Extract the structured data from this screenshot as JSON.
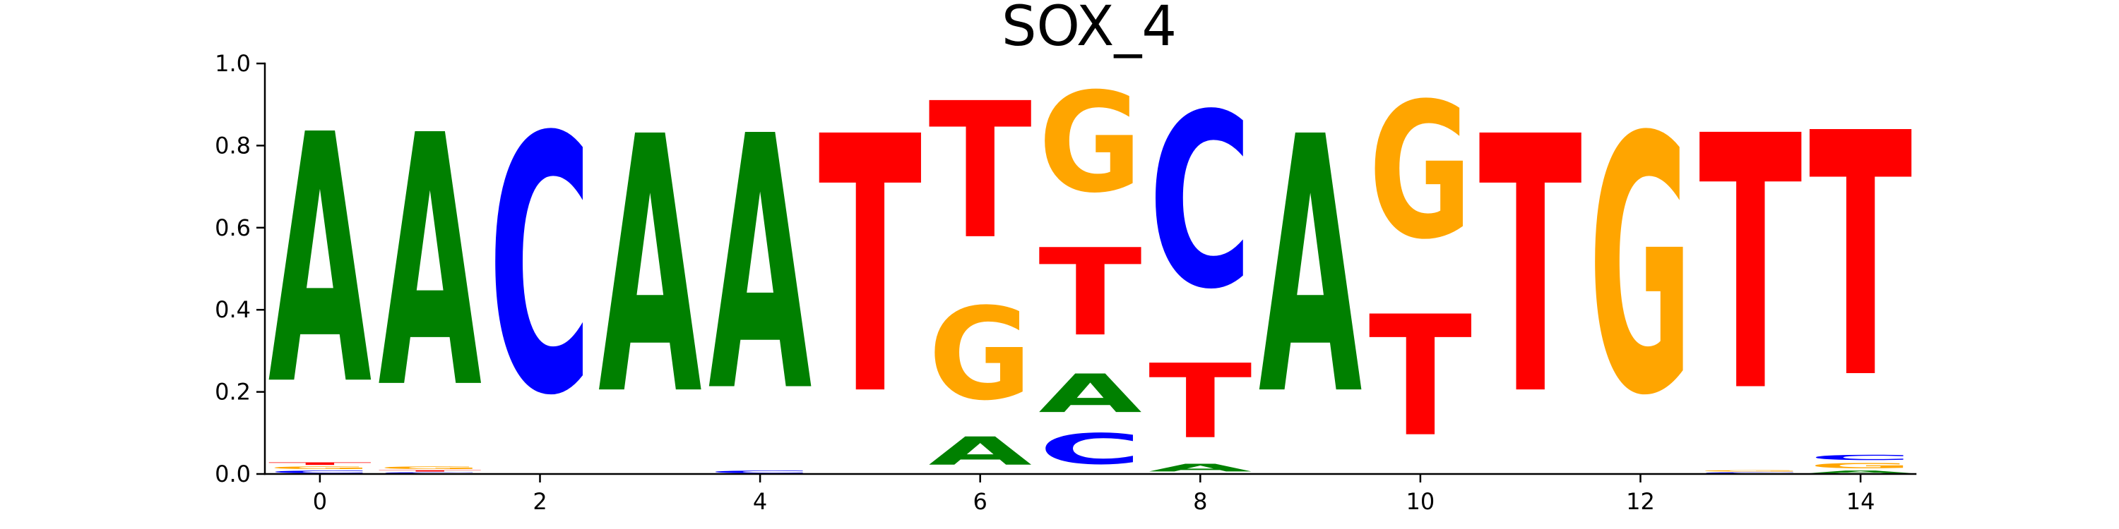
{
  "chart_data": {
    "type": "sequence-logo",
    "title": "SOX_4",
    "xlabel": "",
    "ylabel": "",
    "xlim": [
      -0.5,
      14.5
    ],
    "ylim": [
      0,
      1
    ],
    "x_ticks": [
      0,
      2,
      4,
      6,
      8,
      10,
      12,
      14
    ],
    "y_ticks": [
      0.0,
      0.2,
      0.4,
      0.6,
      0.8,
      1.0
    ],
    "y_tick_labels": [
      "0.0",
      "0.2",
      "0.4",
      "0.6",
      "0.8",
      "1.0"
    ],
    "colors": {
      "A": "#008000",
      "C": "#0000ff",
      "G": "#ffa500",
      "T": "#ff0000"
    },
    "positions": [
      {
        "x": 0,
        "stack": [
          [
            "C",
            0.01
          ],
          [
            "G",
            0.01
          ],
          [
            "T",
            0.01
          ],
          [
            "A",
            0.97
          ]
        ]
      },
      {
        "x": 1,
        "stack": [
          [
            "C",
            0.005
          ],
          [
            "T",
            0.005
          ],
          [
            "G",
            0.01
          ],
          [
            "A",
            0.98
          ]
        ]
      },
      {
        "x": 2,
        "stack": [
          [
            "C",
            1.0
          ]
        ]
      },
      {
        "x": 3,
        "stack": [
          [
            "A",
            1.0
          ]
        ]
      },
      {
        "x": 4,
        "stack": [
          [
            "C",
            0.01
          ],
          [
            "A",
            0.99
          ]
        ]
      },
      {
        "x": 5,
        "stack": [
          [
            "T",
            1.0
          ]
        ]
      },
      {
        "x": 6,
        "stack": [
          [
            "A",
            0.11
          ],
          [
            "G",
            0.36
          ],
          [
            "T",
            0.53
          ]
        ]
      },
      {
        "x": 7,
        "stack": [
          [
            "C",
            0.12
          ],
          [
            "A",
            0.15
          ],
          [
            "T",
            0.34
          ],
          [
            "G",
            0.39
          ]
        ]
      },
      {
        "x": 8,
        "stack": [
          [
            "A",
            0.03
          ],
          [
            "T",
            0.29
          ],
          [
            "C",
            0.68
          ]
        ]
      },
      {
        "x": 9,
        "stack": [
          [
            "A",
            1.0
          ]
        ]
      },
      {
        "x": 10,
        "stack": [
          [
            "T",
            0.47
          ],
          [
            "G",
            0.53
          ]
        ]
      },
      {
        "x": 11,
        "stack": [
          [
            "T",
            1.0
          ]
        ]
      },
      {
        "x": 12,
        "stack": [
          [
            "G",
            1.0
          ]
        ]
      },
      {
        "x": 13,
        "stack": [
          [
            "C",
            0.005
          ],
          [
            "G",
            0.005
          ],
          [
            "T",
            0.99
          ]
        ]
      },
      {
        "x": 14,
        "stack": [
          [
            "A",
            0.01
          ],
          [
            "G",
            0.02
          ],
          [
            "C",
            0.02
          ],
          [
            "T",
            0.95
          ]
        ]
      }
    ]
  }
}
